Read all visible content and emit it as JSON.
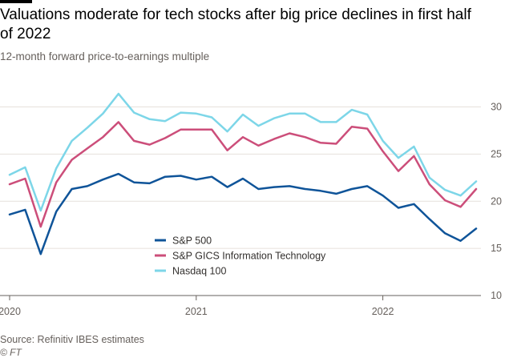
{
  "title": "Valuations moderate for tech stocks after big price declines in first half of 2022",
  "subtitle": "12-month forward price-to-earnings multiple",
  "source": "Source: Refinitiv IBES estimates",
  "credit": "© FT",
  "colors": {
    "sp500": "#0f5499",
    "infotech": "#cc4e7a",
    "nasdaq": "#7dd6e8",
    "grid": "#e6e1dc",
    "axis": "#66605c"
  },
  "chart_data": {
    "type": "line",
    "title": "Valuations moderate for tech stocks after big price declines in first half of 2022",
    "subtitle": "12-month forward price-to-earnings multiple",
    "xlabel": "",
    "ylabel": "",
    "x_ticks": [
      "2020",
      "2021",
      "2022"
    ],
    "y_ticks": [
      10,
      15,
      20,
      25,
      30
    ],
    "ylim": [
      10,
      32
    ],
    "xlim": [
      "2020-01",
      "2022-07"
    ],
    "grid": true,
    "legend": "bottom-center",
    "x": [
      "2020-01",
      "2020-02",
      "2020-03",
      "2020-04",
      "2020-05",
      "2020-06",
      "2020-07",
      "2020-08",
      "2020-09",
      "2020-10",
      "2020-11",
      "2020-12",
      "2021-01",
      "2021-02",
      "2021-03",
      "2021-04",
      "2021-05",
      "2021-06",
      "2021-07",
      "2021-08",
      "2021-09",
      "2021-10",
      "2021-11",
      "2021-12",
      "2022-01",
      "2022-02",
      "2022-03",
      "2022-04",
      "2022-05",
      "2022-06",
      "2022-07"
    ],
    "series": [
      {
        "name": "S&P 500",
        "values": [
          18.6,
          19.1,
          14.4,
          18.9,
          21.3,
          21.6,
          22.3,
          22.9,
          22.0,
          21.9,
          22.6,
          22.7,
          22.3,
          22.6,
          21.5,
          22.4,
          21.3,
          21.5,
          21.6,
          21.3,
          21.1,
          20.8,
          21.3,
          21.6,
          20.6,
          19.3,
          19.7,
          18.1,
          16.6,
          15.8,
          17.1
        ]
      },
      {
        "name": "S&P GICS Information Technology",
        "values": [
          21.8,
          22.4,
          17.3,
          22.0,
          24.4,
          25.6,
          26.8,
          28.4,
          26.4,
          26.0,
          26.7,
          27.6,
          27.6,
          27.6,
          25.4,
          26.8,
          25.9,
          26.6,
          27.2,
          26.8,
          26.2,
          26.1,
          27.9,
          27.7,
          25.3,
          23.2,
          24.8,
          21.8,
          20.1,
          19.4,
          21.3
        ]
      },
      {
        "name": "Nasdaq 100",
        "values": [
          22.8,
          23.6,
          19.0,
          23.5,
          26.4,
          27.8,
          29.3,
          31.4,
          29.4,
          28.7,
          28.5,
          29.4,
          29.3,
          28.9,
          27.4,
          29.2,
          28.0,
          28.8,
          29.3,
          29.3,
          28.4,
          28.4,
          29.7,
          29.2,
          26.4,
          24.6,
          25.8,
          22.5,
          21.2,
          20.6,
          22.1
        ]
      }
    ]
  }
}
